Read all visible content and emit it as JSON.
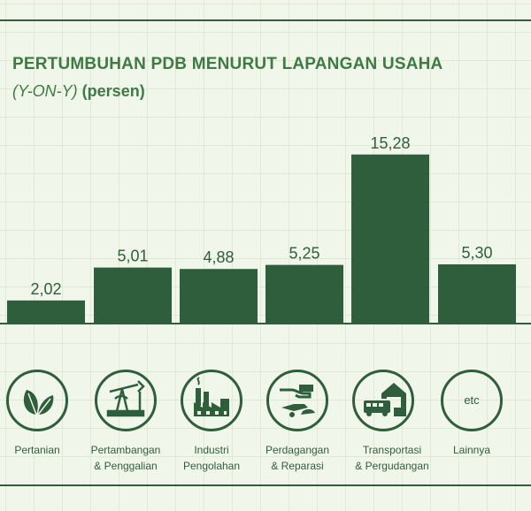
{
  "title": "PERTUMBUHAN PDB MENURUT LAPANGAN USAHA",
  "subtitle_italic": "(Y-ON-Y)",
  "subtitle_rest": "(persen)",
  "colors": {
    "bar": "#2f5e3c",
    "title": "#3f7a45",
    "grid": "#dfe9d3"
  },
  "icons": [
    "leaf-icon",
    "oil-pump-icon",
    "factory-icon",
    "handshake-icon",
    "truck-warehouse-icon",
    "etc-icon"
  ],
  "etc_text": "etc",
  "chart_data": {
    "type": "bar",
    "categories": [
      "Pertanian",
      "Pertambangan\n& Penggalian",
      "Industri\nPengolahan",
      "Perdagangan\n& Reparasi",
      "Transportasi\n& Pergudangan",
      "Lainnya"
    ],
    "values": [
      2.02,
      5.01,
      4.88,
      5.25,
      15.28,
      5.3
    ],
    "value_labels": [
      "2,02",
      "5,01",
      "4,88",
      "5,25",
      "15,28",
      "5,30"
    ],
    "title": "PERTUMBUHAN PDB MENURUT LAPANGAN USAHA",
    "ylim": [
      0,
      16.5
    ],
    "grid": true
  }
}
